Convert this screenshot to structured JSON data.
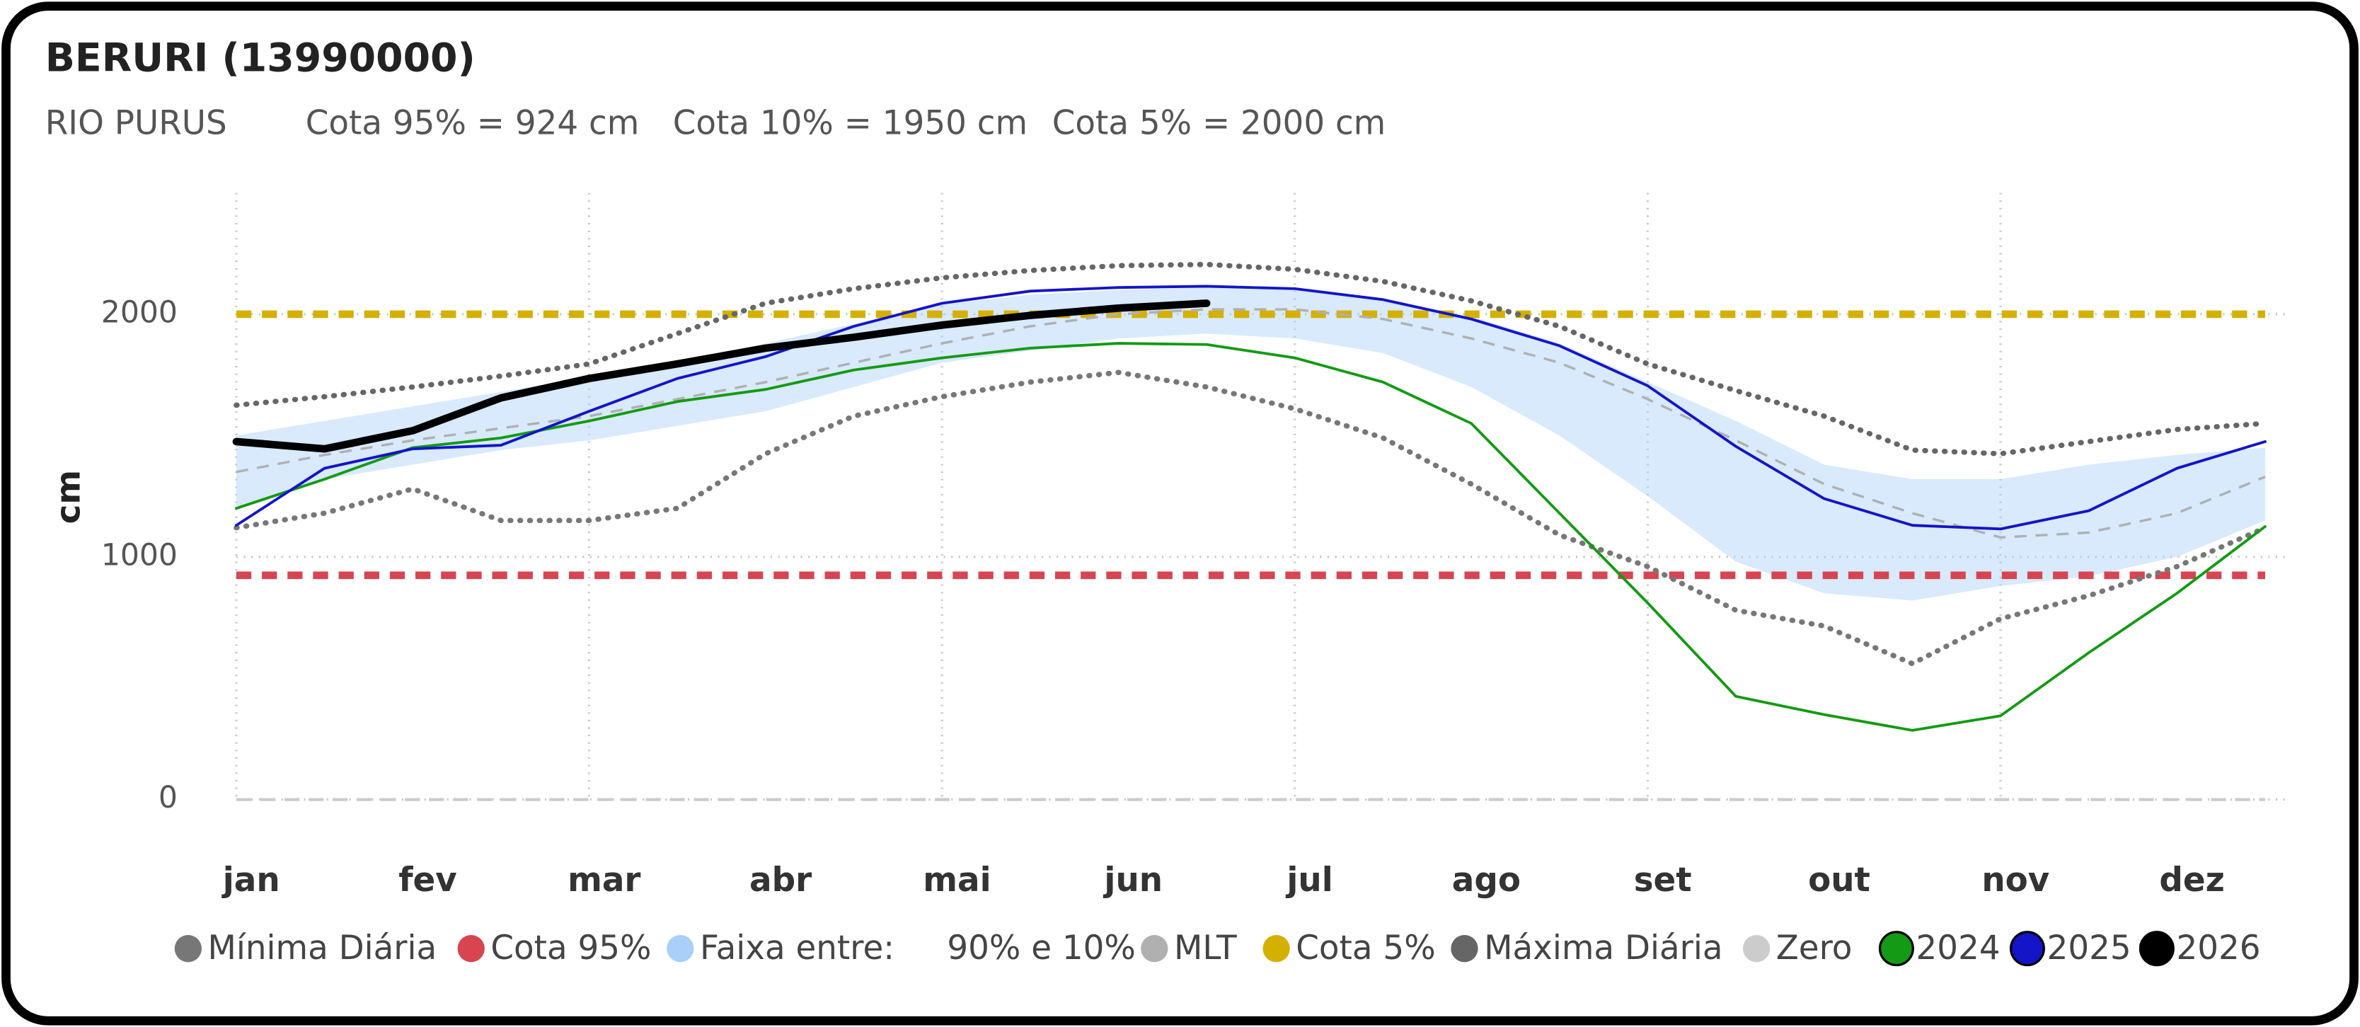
{
  "chart_data": {
    "type": "line",
    "title": "BERURI (13990000)",
    "subtitle": [
      "RIO PURUS",
      "Cota 95% = 924 cm",
      "Cota 10% = 1950 cm",
      "Cota 5% = 2000 cm"
    ],
    "y_label": "cm",
    "categories": [
      "jan",
      null,
      "fev",
      null,
      "mar",
      null,
      "abr",
      null,
      "mai",
      null,
      "jun",
      null,
      "jul",
      null,
      "ago",
      null,
      "set",
      null,
      "out",
      null,
      "nov",
      null,
      "dez",
      null
    ],
    "ylim": [
      0,
      2500
    ],
    "yticks": [
      0,
      1000,
      2000
    ],
    "grid": true,
    "series": [
      {
        "name": "Mínima Diária",
        "kind": "line",
        "style": "dotted",
        "color": "#777777",
        "values": [
          1120,
          1180,
          1280,
          1150,
          1150,
          1200,
          1425,
          1580,
          1660,
          1720,
          1760,
          1700,
          1610,
          1490,
          1300,
          1090,
          960,
          780,
          715,
          560,
          745,
          840,
          960,
          1120
        ]
      },
      {
        "name": "Cota 95%",
        "kind": "hline",
        "color": "#d64550",
        "value": 924
      },
      {
        "name": "Faixa entre:     90% e 10%",
        "kind": "band",
        "color": "#a8d0f8",
        "high": [
          1500,
          1560,
          1620,
          1680,
          1740,
          1800,
          1880,
          1960,
          2040,
          2080,
          2100,
          2110,
          2100,
          2060,
          1990,
          1880,
          1720,
          1560,
          1380,
          1320,
          1320,
          1380,
          1420,
          1450
        ],
        "low": [
          1200,
          1320,
          1380,
          1440,
          1480,
          1540,
          1600,
          1700,
          1800,
          1850,
          1900,
          1920,
          1900,
          1840,
          1700,
          1500,
          1250,
          980,
          850,
          820,
          880,
          920,
          1000,
          1150
        ]
      },
      {
        "name": "MLT",
        "kind": "line",
        "style": "dashed",
        "color": "#b0b0b0",
        "values": [
          1350,
          1420,
          1480,
          1530,
          1580,
          1650,
          1720,
          1800,
          1880,
          1950,
          2000,
          2020,
          2020,
          1980,
          1900,
          1800,
          1650,
          1480,
          1300,
          1180,
          1080,
          1100,
          1180,
          1330
        ]
      },
      {
        "name": "Cota 5%",
        "kind": "hline",
        "color": "#d4b000",
        "value": 2000
      },
      {
        "name": "Máxima Diária",
        "kind": "line",
        "style": "dotted",
        "color": "#666666",
        "values": [
          1625,
          1660,
          1700,
          1745,
          1795,
          1920,
          2045,
          2105,
          2150,
          2180,
          2200,
          2205,
          2185,
          2135,
          2055,
          1950,
          1795,
          1685,
          1580,
          1440,
          1425,
          1475,
          1525,
          1550
        ]
      },
      {
        "name": "Zero",
        "kind": "hline",
        "color": "#cccccc",
        "value": 0
      },
      {
        "name": "2024",
        "kind": "line",
        "style": "solid",
        "color": "#149a14",
        "values": [
          1200,
          1320,
          1450,
          1490,
          1560,
          1640,
          1690,
          1770,
          1820,
          1860,
          1880,
          1875,
          1820,
          1720,
          1550,
          1180,
          810,
          425,
          350,
          285,
          345,
          605,
          850,
          1125
        ]
      },
      {
        "name": "2025",
        "kind": "line",
        "style": "solid",
        "color": "#1414c8",
        "values": [
          1130,
          1365,
          1445,
          1460,
          1600,
          1735,
          1825,
          1950,
          2045,
          2095,
          2110,
          2115,
          2105,
          2060,
          1980,
          1870,
          1705,
          1455,
          1240,
          1130,
          1115,
          1190,
          1365,
          1475
        ]
      },
      {
        "name": "2026",
        "kind": "line",
        "style": "bold",
        "color": "#000000",
        "values": [
          1475,
          1445,
          1520,
          1655,
          1735,
          1795,
          1860,
          1905,
          1955,
          1995,
          2025,
          2045,
          null,
          null,
          null,
          null,
          null,
          null,
          null,
          null,
          null,
          null,
          null,
          null
        ]
      }
    ]
  }
}
